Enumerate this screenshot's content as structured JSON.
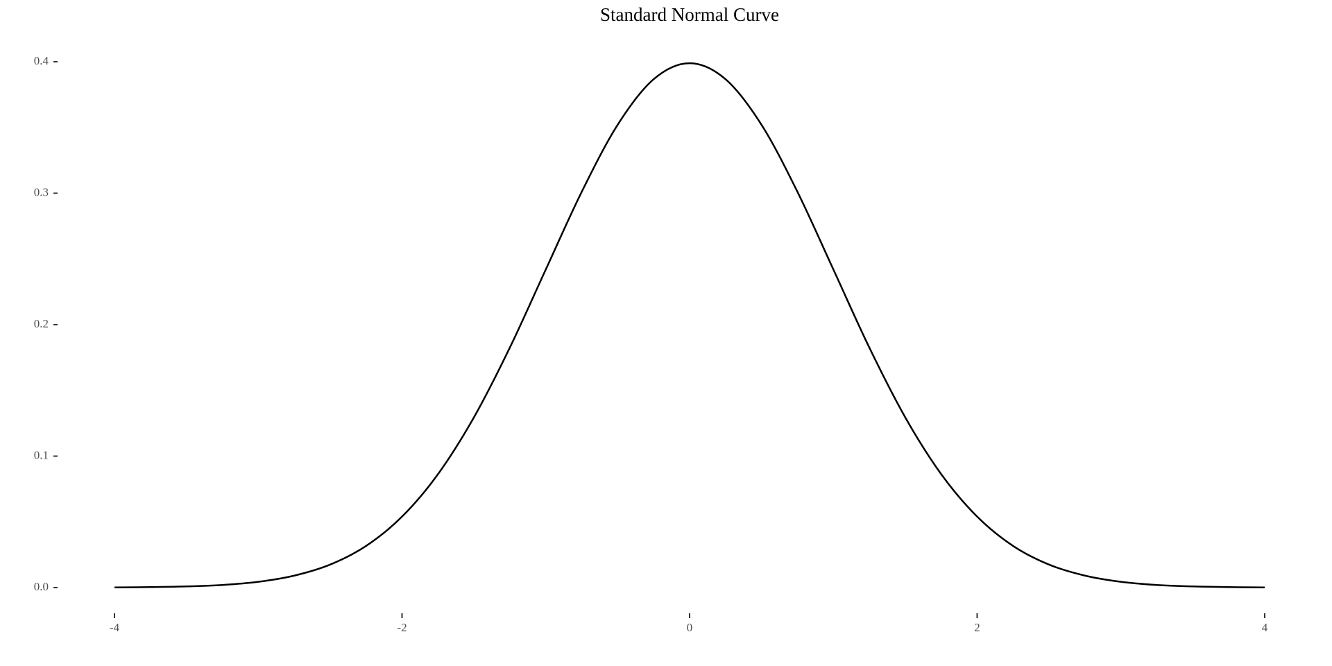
{
  "chart_data": {
    "type": "line",
    "title": "Standard Normal Curve",
    "x": [
      -4,
      -3.75,
      -3.5,
      -3.25,
      -3,
      -2.75,
      -2.5,
      -2.25,
      -2,
      -1.75,
      -1.5,
      -1.25,
      -1,
      -0.75,
      -0.5,
      -0.25,
      0,
      0.25,
      0.5,
      0.75,
      1,
      1.25,
      1.5,
      1.75,
      2,
      2.25,
      2.5,
      2.75,
      3,
      3.25,
      3.5,
      3.75,
      4
    ],
    "series": [
      {
        "color": "#000000",
        "values": [
          0.0001,
          0.0004,
          0.0009,
          0.002,
          0.0044,
          0.0091,
          0.0175,
          0.0317,
          0.054,
          0.0863,
          0.1295,
          0.1826,
          0.242,
          0.3011,
          0.3521,
          0.3867,
          0.3989,
          0.3867,
          0.3521,
          0.3011,
          0.242,
          0.1826,
          0.1295,
          0.0863,
          0.054,
          0.0317,
          0.0175,
          0.0091,
          0.0044,
          0.002,
          0.0009,
          0.0004,
          0.0001
        ]
      }
    ],
    "xlim": [
      -4,
      4
    ],
    "xticks": [
      -4,
      -2,
      0,
      2,
      4
    ],
    "ylim": [
      0,
      0.4
    ],
    "yticks": [
      {
        "value": 0,
        "label": "0.0"
      },
      0.1,
      0.2,
      0.3,
      0.4
    ],
    "grid": false
  }
}
